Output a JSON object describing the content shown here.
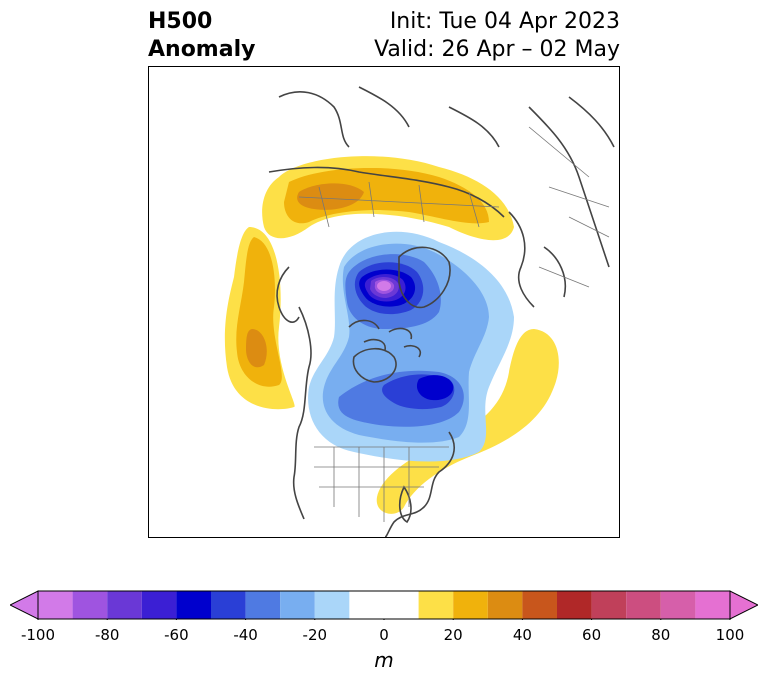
{
  "title": {
    "left_line1": "H500",
    "left_line2": "Anomaly",
    "right_line1": "Init: Tue 04 Apr 2023",
    "right_line2": "Valid: 26 Apr – 02 May"
  },
  "map": {
    "projection": "north-polar-stereographic",
    "field": "500 hPa geopotential height anomaly",
    "features": [
      {
        "name": "negative-anomaly-arctic",
        "peak_m": -100
      },
      {
        "name": "negative-anomaly-canada",
        "peak_m": -60
      },
      {
        "name": "positive-anomaly-siberia",
        "peak_m": 40
      },
      {
        "name": "positive-anomaly-north-pacific",
        "peak_m": 40
      },
      {
        "name": "positive-anomaly-west-atlantic",
        "peak_m": 20
      }
    ]
  },
  "colorbar": {
    "unit": "m",
    "ticks": [
      "-100",
      "-80",
      "-60",
      "-40",
      "-20",
      "0",
      "20",
      "40",
      "60",
      "80",
      "100"
    ],
    "levels": [
      -100,
      -90,
      -80,
      -70,
      -60,
      -50,
      -40,
      -30,
      -20,
      -10,
      10,
      20,
      30,
      40,
      50,
      60,
      70,
      80,
      90,
      100
    ],
    "colors": {
      "under": "#d27ae8",
      "bins": [
        "#d27ae8",
        "#9f54e0",
        "#6a38d6",
        "#3b1fd4",
        "#0000cd",
        "#2a3fd6",
        "#4f7ae2",
        "#78aef0",
        "#aad6f9",
        "#ffffff",
        "#fde047",
        "#f0b20c",
        "#dc8c12",
        "#c8561c",
        "#b02828",
        "#c0405a",
        "#cc4e80",
        "#d65faa",
        "#e570d2"
      ],
      "over": "#e570d2"
    }
  }
}
